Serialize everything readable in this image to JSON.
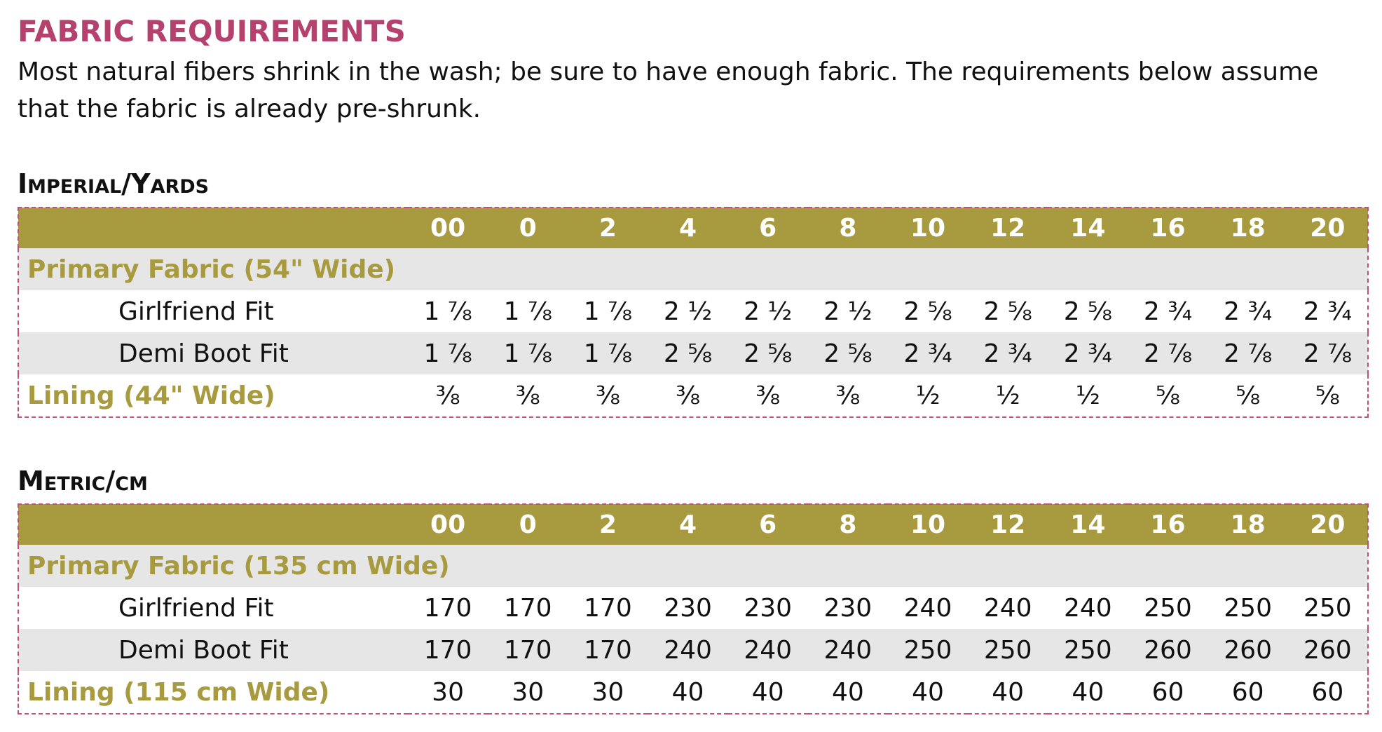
{
  "title": "FABRIC REQUIREMENTS",
  "intro": "Most natural fibers shrink in the wash; be sure to have enough fabric. The requirements below assume that the fabric is already pre-shrunk.",
  "tables": [
    {
      "heading": "Imperial/Yards",
      "sizes": [
        "00",
        "0",
        "2",
        "4",
        "6",
        "8",
        "10",
        "12",
        "14",
        "16",
        "18",
        "20"
      ],
      "primary": {
        "label": "Primary Fabric (54\" Wide)",
        "rows": [
          {
            "label": "Girlfriend Fit",
            "values": [
              "1 ⅞",
              "1 ⅞",
              "1 ⅞",
              "2 ½",
              "2 ½",
              "2 ½",
              "2 ⅝",
              "2 ⅝",
              "2 ⅝",
              "2 ¾",
              "2 ¾",
              "2 ¾"
            ]
          },
          {
            "label": "Demi Boot Fit",
            "values": [
              "1 ⅞",
              "1 ⅞",
              "1 ⅞",
              "2 ⅝",
              "2 ⅝",
              "2 ⅝",
              "2 ¾",
              "2 ¾",
              "2 ¾",
              "2 ⅞",
              "2 ⅞",
              "2 ⅞"
            ]
          }
        ]
      },
      "lining": {
        "label": "Lining (44\" Wide)",
        "values": [
          "⅜",
          "⅜",
          "⅜",
          "⅜",
          "⅜",
          "⅜",
          "½",
          "½",
          "½",
          "⅝",
          "⅝",
          "⅝"
        ]
      }
    },
    {
      "heading": "Metric/cm",
      "sizes": [
        "00",
        "0",
        "2",
        "4",
        "6",
        "8",
        "10",
        "12",
        "14",
        "16",
        "18",
        "20"
      ],
      "primary": {
        "label": "Primary Fabric (135 cm Wide)",
        "rows": [
          {
            "label": "Girlfriend Fit",
            "values": [
              170,
              170,
              170,
              230,
              230,
              230,
              240,
              240,
              240,
              250,
              250,
              250
            ]
          },
          {
            "label": "Demi Boot Fit",
            "values": [
              170,
              170,
              170,
              240,
              240,
              240,
              250,
              250,
              250,
              260,
              260,
              260
            ]
          }
        ]
      },
      "lining": {
        "label": "Lining (115 cm Wide)",
        "values": [
          30,
          30,
          30,
          40,
          40,
          40,
          40,
          40,
          40,
          60,
          60,
          60
        ]
      }
    }
  ]
}
